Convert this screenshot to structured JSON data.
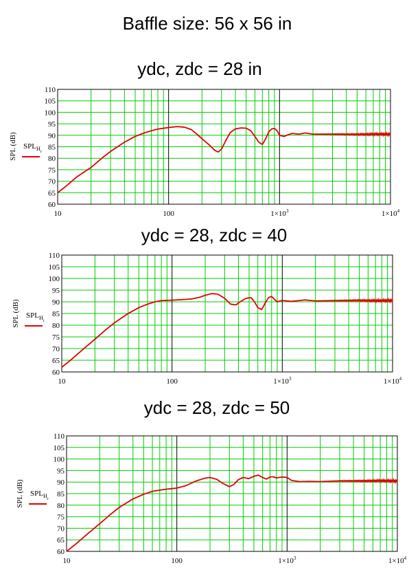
{
  "page": {
    "title": "Baffle size: 56 x 56 in"
  },
  "colors": {
    "grid": "#00cc00",
    "decade": "#000000",
    "series": "#e00000"
  },
  "chart_data": [
    {
      "type": "line",
      "title": "ydc, zdc = 28 in",
      "ylabel": "SPL (dB)",
      "xscale": "log",
      "xlim": [
        10,
        10000
      ],
      "ylim": [
        60,
        110
      ],
      "ytick_step": 5,
      "xtick_labels": [
        "10",
        "100",
        "1×10",
        "1×10"
      ],
      "xtick_exps": [
        "",
        "",
        "3",
        "4"
      ],
      "grid": true,
      "legend": {
        "label_main": "SPL",
        "label_sub1": "H",
        "label_sub2": "r",
        "placement": "left"
      },
      "series": [
        {
          "x": [
            10,
            12,
            15,
            20,
            25,
            30,
            40,
            50,
            60,
            70,
            80,
            100,
            120,
            140,
            160,
            180,
            200,
            230,
            260,
            280,
            300,
            330,
            360,
            400,
            450,
            500,
            550,
            600,
            650,
            700,
            750,
            800,
            850,
            900,
            950,
            1000,
            1100,
            1200,
            1300,
            1500,
            1700,
            2000,
            3000,
            5000,
            7000,
            10000
          ],
          "y": [
            65,
            68,
            72,
            76,
            80,
            83,
            87,
            89.5,
            91,
            92,
            92.7,
            93.4,
            93.8,
            93.5,
            92.5,
            90.5,
            88.5,
            86,
            83.5,
            82.7,
            84,
            88,
            91.2,
            92.8,
            93.2,
            93.1,
            92,
            89.5,
            87,
            86,
            88.5,
            91.5,
            92.8,
            93,
            92,
            90,
            89.5,
            90.3,
            90.8,
            90.5,
            91,
            90.5,
            90.5,
            90.4,
            90.5,
            90.5
          ]
        }
      ]
    },
    {
      "type": "line",
      "title": "ydc = 28, zdc = 40",
      "ylabel": "SPL (dB)",
      "xscale": "log",
      "xlim": [
        10,
        10000
      ],
      "ylim": [
        60,
        110
      ],
      "ytick_step": 5,
      "xtick_labels": [
        "10",
        "100",
        "1×10",
        "1×10"
      ],
      "xtick_exps": [
        "",
        "",
        "3",
        "4"
      ],
      "grid": true,
      "legend": {
        "label_main": "SPL",
        "label_sub1": "H",
        "label_sub2": "r",
        "placement": "left"
      },
      "series": [
        {
          "x": [
            10,
            12,
            15,
            20,
            25,
            30,
            40,
            50,
            60,
            70,
            80,
            100,
            120,
            150,
            180,
            200,
            230,
            260,
            300,
            340,
            380,
            420,
            470,
            520,
            560,
            600,
            650,
            700,
            750,
            800,
            850,
            900,
            1000,
            1200,
            1400,
            1600,
            2000,
            3000,
            5000,
            7000,
            10000
          ],
          "y": [
            62,
            65,
            69,
            74,
            78,
            81,
            85,
            87.5,
            89,
            90,
            90.5,
            90.7,
            90.9,
            91.2,
            92,
            92.8,
            93.5,
            93.3,
            91.5,
            89,
            88.7,
            90.2,
            91.5,
            91.8,
            90,
            87.5,
            86.7,
            89.5,
            91.8,
            92.3,
            91,
            90,
            90.6,
            90.2,
            90.5,
            90.8,
            90.4,
            90.5,
            90.6,
            90.5,
            90.6
          ]
        }
      ]
    },
    {
      "type": "line",
      "title": "ydc = 28, zdc = 50",
      "ylabel": "SPL (dB)",
      "xscale": "log",
      "xlim": [
        10,
        10000
      ],
      "ylim": [
        60,
        110
      ],
      "ytick_step": 5,
      "xtick_labels": [
        "10",
        "100",
        "1×10",
        "1×10"
      ],
      "xtick_exps": [
        "",
        "",
        "3",
        "4"
      ],
      "grid": true,
      "legend": {
        "label_main": "SPL",
        "label_sub1": "H",
        "label_sub2": "r",
        "placement": "left"
      },
      "series": [
        {
          "x": [
            10,
            12,
            15,
            20,
            25,
            30,
            40,
            50,
            60,
            70,
            80,
            100,
            120,
            150,
            180,
            200,
            230,
            260,
            300,
            330,
            360,
            400,
            450,
            500,
            550,
            600,
            650,
            700,
            750,
            800,
            900,
            1000,
            1100,
            1300,
            1600,
            2000,
            3000,
            5000,
            7000,
            10000
          ],
          "y": [
            60,
            63,
            67,
            72,
            76,
            79,
            82.7,
            84.7,
            86,
            86.5,
            86.9,
            87.4,
            88.4,
            90.5,
            91.7,
            92,
            91.2,
            89.5,
            88,
            89,
            91,
            92,
            91.5,
            92.5,
            93,
            92,
            91.3,
            92.2,
            92.3,
            91.8,
            92.2,
            92,
            90.7,
            90.2,
            90.3,
            90.2,
            90.5,
            90.5,
            90.6,
            90.5
          ]
        }
      ]
    }
  ]
}
